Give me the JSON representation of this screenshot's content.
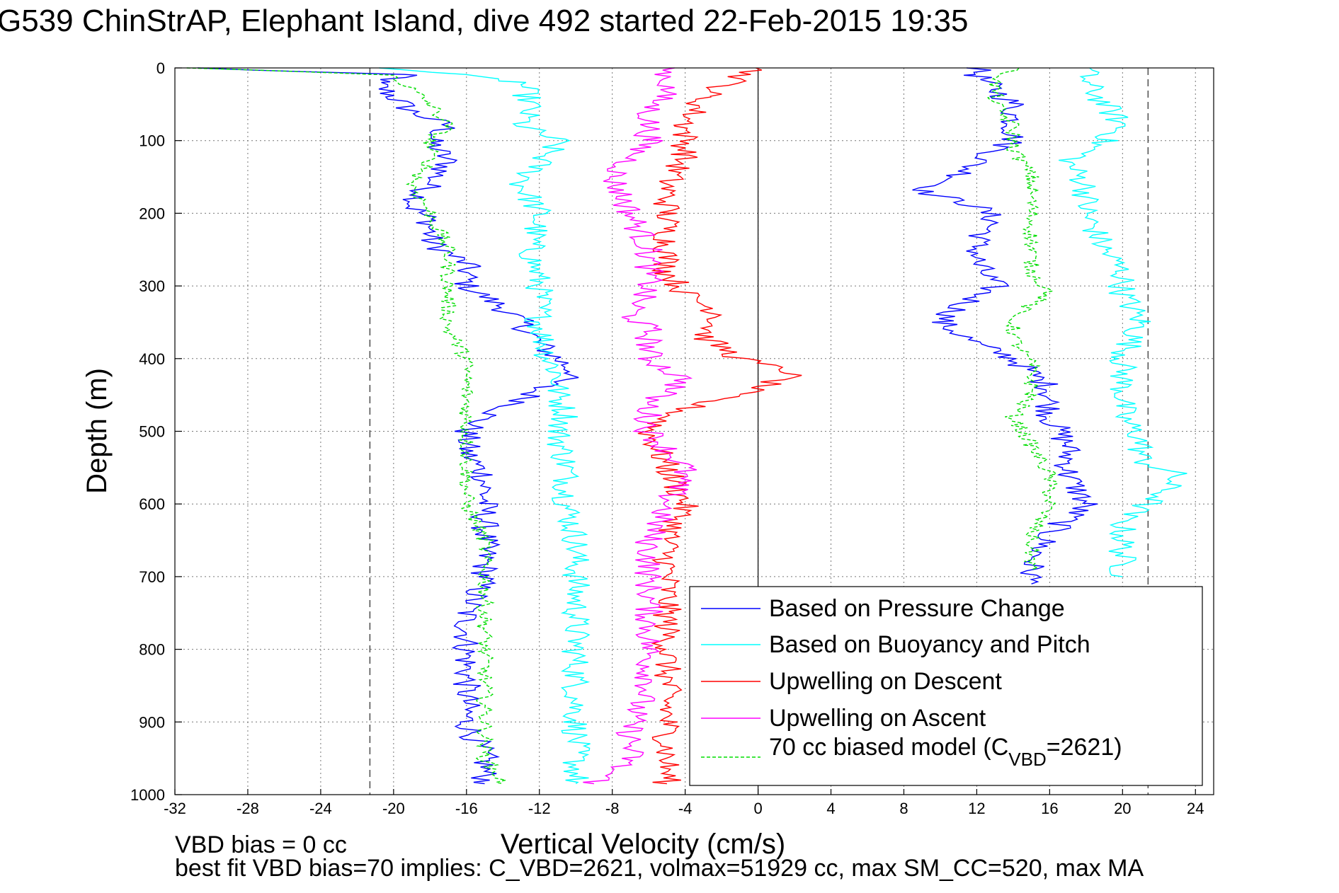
{
  "figure": {
    "title": "G539 ChinStrAP, Elephant Island, dive 492 started 22-Feb-2015 19:35",
    "footer_line1": "VBD bias = 0 cc",
    "footer_line2": "best fit VBD bias=70 implies: C_VBD=2621, volmax=51929 cc, max SM_CC=520, max MA"
  },
  "chart_data": {
    "type": "line",
    "title": "G539 ChinStrAP, Elephant Island, dive 492 started 22-Feb-2015 19:35",
    "xlabel": "Vertical Velocity (cm/s)",
    "ylabel": "Depth (m)",
    "xlim": [
      -32,
      25
    ],
    "ylim": [
      0,
      1000
    ],
    "y_reversed": true,
    "xticks": [
      -32,
      -28,
      -24,
      -20,
      -16,
      -12,
      -8,
      -4,
      0,
      4,
      8,
      12,
      16,
      20,
      24
    ],
    "yticks": [
      0,
      100,
      200,
      300,
      400,
      500,
      600,
      700,
      800,
      900,
      1000
    ],
    "grid": true,
    "legend_position": "lower-right",
    "reference_lines": {
      "dashed_x": [
        -21.3,
        21.4
      ],
      "solid_x": [
        0
      ]
    },
    "series": [
      {
        "name": "Based on Pressure Change",
        "color": "#0000ff",
        "depth": [
          0,
          10,
          20,
          40,
          60,
          80,
          100,
          130,
          160,
          190,
          210,
          240,
          270,
          300,
          330,
          350,
          380,
          400,
          420,
          440,
          460,
          480,
          500,
          530,
          560,
          600,
          650,
          700,
          750,
          800,
          850,
          900,
          950,
          985
        ],
        "x": [
          -31,
          -19,
          -21,
          -20,
          -19,
          -17,
          -18,
          -17,
          -18,
          -19,
          -18,
          -18,
          -16,
          -16,
          -14,
          -13,
          -12,
          -11,
          -10,
          -12,
          -13,
          -15,
          -16,
          -16,
          -15,
          -15,
          -15,
          -15,
          -16,
          -16,
          -16,
          -16,
          -15,
          -15
        ],
        "x_ascent": [
          12,
          12,
          13,
          14,
          14,
          14,
          12,
          11,
          9,
          12,
          13,
          12,
          12,
          13,
          11,
          10,
          12,
          14,
          15,
          16,
          16,
          16,
          17,
          17,
          18,
          16,
          15,
          15
        ],
        "depth_ascent": [
          0,
          10,
          30,
          50,
          80,
          100,
          130,
          150,
          170,
          190,
          210,
          240,
          270,
          300,
          330,
          350,
          380,
          400,
          420,
          440,
          460,
          480,
          520,
          560,
          600,
          640,
          680,
          710
        ]
      },
      {
        "name": "Based on Buoyancy and Pitch",
        "color": "#00ffff",
        "depth": [
          0,
          20,
          50,
          80,
          100,
          130,
          160,
          200,
          250,
          300,
          350,
          400,
          420,
          450,
          480,
          500,
          550,
          600,
          650,
          700,
          750,
          800,
          850,
          900,
          950,
          985
        ],
        "x": [
          -20,
          -13,
          -12.5,
          -13,
          -11,
          -12,
          -13,
          -12,
          -12.5,
          -12,
          -12,
          -11.5,
          -11,
          -11,
          -10.5,
          -11,
          -10.5,
          -10.5,
          -10,
          -10,
          -10,
          -10,
          -10,
          -10,
          -10,
          -10
        ],
        "x_ascent": [
          18,
          18,
          19,
          20,
          19,
          17,
          18,
          18,
          19,
          20,
          20,
          21,
          20,
          20,
          20,
          21,
          21,
          23,
          22,
          20,
          20,
          20,
          20
        ],
        "depth_ascent": [
          0,
          20,
          50,
          80,
          100,
          130,
          160,
          200,
          250,
          280,
          310,
          350,
          400,
          450,
          480,
          510,
          540,
          560,
          590,
          620,
          650,
          680,
          700
        ]
      },
      {
        "name": "Upwelling on Descent",
        "color": "#ff0000",
        "depth": [
          0,
          40,
          80,
          120,
          160,
          200,
          240,
          280,
          310,
          340,
          370,
          400,
          420,
          440,
          460,
          480,
          500,
          550,
          600,
          650,
          700,
          750,
          800,
          850,
          900,
          950,
          985
        ],
        "x": [
          0,
          -3,
          -4,
          -4,
          -5,
          -5,
          -5,
          -5,
          -4,
          -2,
          -3,
          -1,
          2,
          0,
          -3,
          -5,
          -6,
          -5,
          -4,
          -5,
          -5,
          -5,
          -5,
          -5,
          -5,
          -5,
          -5
        ]
      },
      {
        "name": "Upwelling on Ascent",
        "color": "#ff00ff",
        "depth": [
          0,
          30,
          60,
          100,
          150,
          200,
          250,
          300,
          340,
          360,
          400,
          430,
          460,
          480,
          500,
          550,
          600,
          650,
          700,
          750,
          800,
          850,
          900,
          950,
          985
        ],
        "x": [
          -5,
          -5,
          -6,
          -6,
          -8,
          -7,
          -6,
          -6,
          -7,
          -6,
          -6,
          -4,
          -6,
          -6,
          -6,
          -4,
          -5,
          -6,
          -6,
          -6,
          -6,
          -6,
          -7,
          -7,
          -9
        ]
      },
      {
        "name": "70 cc biased model (C",
        "name_sub": "VBD",
        "name_suffix": "=2621)",
        "color": "#00dd00",
        "dashed": true,
        "depth": [
          0,
          10,
          30,
          50,
          80,
          100,
          130,
          160,
          200,
          250,
          300,
          330,
          360,
          400,
          430,
          460,
          480,
          500,
          550,
          600,
          650,
          700,
          750,
          800,
          850,
          900,
          950,
          985
        ],
        "x": [
          -31,
          -20,
          -19,
          -18,
          -17,
          -18,
          -18,
          -19,
          -18,
          -17,
          -17,
          -17,
          -17,
          -16,
          -16,
          -16,
          -16,
          -16,
          -16,
          -16,
          -15,
          -15,
          -15,
          -15,
          -15,
          -15,
          -15,
          -14
        ],
        "x_ascent": [
          14,
          13,
          13,
          14,
          14,
          15,
          15,
          15,
          15,
          15,
          16,
          14,
          14,
          15,
          15,
          14,
          15,
          16,
          16,
          15,
          15
        ],
        "depth_ascent": [
          0,
          20,
          50,
          80,
          110,
          150,
          180,
          210,
          250,
          280,
          310,
          340,
          370,
          410,
          450,
          480,
          520,
          560,
          600,
          640,
          690
        ]
      }
    ]
  }
}
